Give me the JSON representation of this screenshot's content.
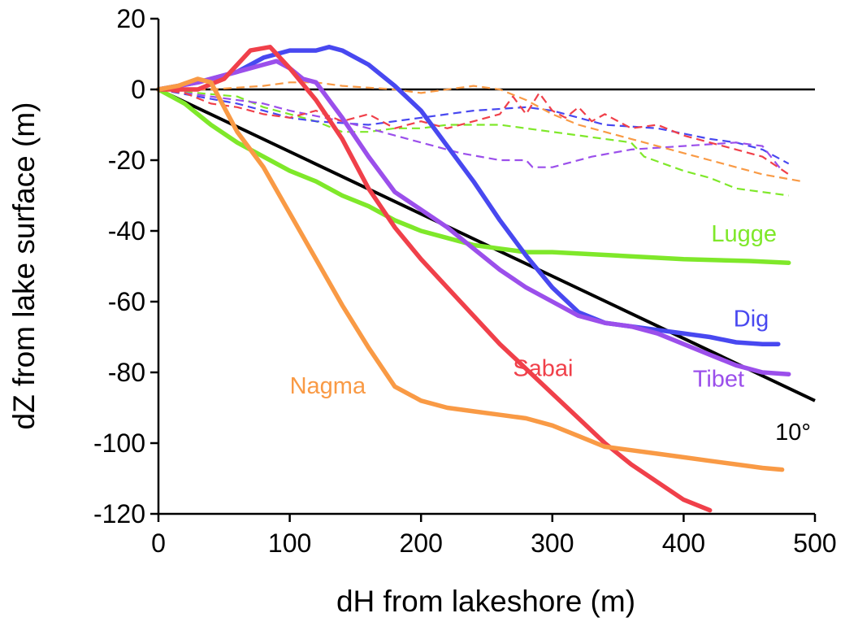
{
  "chart_data": {
    "type": "line",
    "xlabel": "dH from lakeshore (m)",
    "ylabel": "dZ from lake surface (m)",
    "xlim": [
      0,
      500
    ],
    "ylim": [
      -120,
      20
    ],
    "xticks": [
      0,
      100,
      200,
      300,
      400,
      500
    ],
    "yticks": [
      20,
      0,
      -20,
      -40,
      -60,
      -80,
      -100,
      -120
    ],
    "grid": false,
    "legend": "none",
    "reference_lines": [
      {
        "kind": "horizontal",
        "y": 0,
        "color": "#000000"
      },
      {
        "kind": "slope",
        "label": "10°",
        "from": [
          0,
          0
        ],
        "to": [
          500,
          -88
        ],
        "color": "#000000"
      }
    ],
    "series": [
      {
        "name": "Lugge",
        "style": "solid",
        "color": "#7FE82A",
        "label_at": [
          421,
          -43
        ],
        "points": [
          [
            0,
            0
          ],
          [
            20,
            -4
          ],
          [
            40,
            -10
          ],
          [
            60,
            -15
          ],
          [
            80,
            -19
          ],
          [
            100,
            -23
          ],
          [
            120,
            -26
          ],
          [
            140,
            -30
          ],
          [
            160,
            -33
          ],
          [
            180,
            -37
          ],
          [
            200,
            -40
          ],
          [
            220,
            -42
          ],
          [
            240,
            -44
          ],
          [
            260,
            -45
          ],
          [
            280,
            -46
          ],
          [
            300,
            -46
          ],
          [
            350,
            -47
          ],
          [
            400,
            -48
          ],
          [
            450,
            -48.5
          ],
          [
            480,
            -49
          ]
        ]
      },
      {
        "name": "Dig",
        "style": "solid",
        "color": "#4848F0",
        "label_at": [
          438,
          -67
        ],
        "points": [
          [
            0,
            0
          ],
          [
            30,
            2
          ],
          [
            60,
            5
          ],
          [
            80,
            9
          ],
          [
            100,
            11
          ],
          [
            120,
            11
          ],
          [
            130,
            12
          ],
          [
            140,
            11
          ],
          [
            160,
            7
          ],
          [
            180,
            1
          ],
          [
            200,
            -6
          ],
          [
            220,
            -16
          ],
          [
            240,
            -26
          ],
          [
            260,
            -37
          ],
          [
            280,
            -47
          ],
          [
            300,
            -56
          ],
          [
            320,
            -63
          ],
          [
            340,
            -66
          ],
          [
            360,
            -67
          ],
          [
            380,
            -68
          ],
          [
            400,
            -69
          ],
          [
            420,
            -70
          ],
          [
            440,
            -71.5
          ],
          [
            460,
            -72
          ],
          [
            472,
            -72
          ]
        ]
      },
      {
        "name": "Tibet",
        "style": "solid",
        "color": "#9B4FEB",
        "label_at": [
          407,
          -84
        ],
        "points": [
          [
            0,
            0
          ],
          [
            30,
            2
          ],
          [
            60,
            5
          ],
          [
            80,
            7
          ],
          [
            90,
            8
          ],
          [
            100,
            6
          ],
          [
            110,
            3
          ],
          [
            120,
            2
          ],
          [
            140,
            -8
          ],
          [
            160,
            -19
          ],
          [
            180,
            -29
          ],
          [
            200,
            -34
          ],
          [
            220,
            -39
          ],
          [
            240,
            -45
          ],
          [
            260,
            -51
          ],
          [
            280,
            -56
          ],
          [
            300,
            -60
          ],
          [
            320,
            -64
          ],
          [
            340,
            -66
          ],
          [
            360,
            -67
          ],
          [
            380,
            -69
          ],
          [
            400,
            -72
          ],
          [
            420,
            -75
          ],
          [
            440,
            -78
          ],
          [
            460,
            -80
          ],
          [
            480,
            -80.5
          ]
        ]
      },
      {
        "name": "Sabai",
        "style": "solid",
        "color": "#F0404A",
        "label_at": [
          270,
          -81
        ],
        "points": [
          [
            0,
            0
          ],
          [
            30,
            0
          ],
          [
            50,
            3
          ],
          [
            70,
            11
          ],
          [
            85,
            12
          ],
          [
            100,
            6
          ],
          [
            120,
            -3
          ],
          [
            140,
            -14
          ],
          [
            160,
            -28
          ],
          [
            180,
            -39
          ],
          [
            200,
            -48
          ],
          [
            220,
            -56
          ],
          [
            240,
            -64
          ],
          [
            260,
            -72
          ],
          [
            280,
            -79
          ],
          [
            300,
            -86
          ],
          [
            320,
            -93
          ],
          [
            340,
            -100
          ],
          [
            360,
            -106
          ],
          [
            380,
            -111
          ],
          [
            400,
            -116
          ],
          [
            420,
            -119
          ]
        ]
      },
      {
        "name": "Nagma",
        "style": "solid",
        "color": "#F99A45",
        "label_at": [
          100,
          -86
        ],
        "points": [
          [
            0,
            0
          ],
          [
            15,
            1
          ],
          [
            30,
            3
          ],
          [
            40,
            2
          ],
          [
            50,
            -5
          ],
          [
            60,
            -12
          ],
          [
            80,
            -22
          ],
          [
            100,
            -35
          ],
          [
            120,
            -48
          ],
          [
            140,
            -61
          ],
          [
            160,
            -73
          ],
          [
            180,
            -84
          ],
          [
            200,
            -88
          ],
          [
            220,
            -90
          ],
          [
            240,
            -91
          ],
          [
            260,
            -92
          ],
          [
            280,
            -93
          ],
          [
            300,
            -95
          ],
          [
            320,
            -98
          ],
          [
            340,
            -101
          ],
          [
            360,
            -102
          ],
          [
            380,
            -103
          ],
          [
            400,
            -104
          ],
          [
            420,
            -105
          ],
          [
            440,
            -106
          ],
          [
            460,
            -107
          ],
          [
            475,
            -107.5
          ]
        ]
      },
      {
        "name": "",
        "style": "dashed",
        "color": "#7FE82A",
        "points": [
          [
            0,
            0
          ],
          [
            30,
            -1
          ],
          [
            60,
            -2
          ],
          [
            80,
            -5
          ],
          [
            100,
            -7
          ],
          [
            120,
            -9
          ],
          [
            140,
            -12
          ],
          [
            160,
            -12
          ],
          [
            180,
            -11
          ],
          [
            200,
            -11
          ],
          [
            220,
            -10
          ],
          [
            260,
            -10
          ],
          [
            300,
            -12
          ],
          [
            340,
            -14
          ],
          [
            360,
            -15
          ],
          [
            370,
            -19
          ],
          [
            400,
            -23
          ],
          [
            420,
            -25
          ],
          [
            440,
            -28
          ],
          [
            480,
            -30
          ]
        ]
      },
      {
        "name": "",
        "style": "dashed",
        "color": "#4848F0",
        "points": [
          [
            0,
            0
          ],
          [
            30,
            -2
          ],
          [
            60,
            -4
          ],
          [
            80,
            -6
          ],
          [
            100,
            -8
          ],
          [
            120,
            -9
          ],
          [
            160,
            -10
          ],
          [
            200,
            -8
          ],
          [
            240,
            -6
          ],
          [
            280,
            -5
          ],
          [
            300,
            -6
          ],
          [
            340,
            -10
          ],
          [
            380,
            -11
          ],
          [
            420,
            -14
          ],
          [
            440,
            -15
          ],
          [
            460,
            -17
          ],
          [
            480,
            -21
          ]
        ]
      },
      {
        "name": "",
        "style": "dashed",
        "color": "#9B4FEB",
        "points": [
          [
            0,
            0
          ],
          [
            40,
            -2
          ],
          [
            80,
            -4
          ],
          [
            100,
            -6
          ],
          [
            140,
            -9
          ],
          [
            160,
            -11
          ],
          [
            180,
            -13
          ],
          [
            200,
            -15
          ],
          [
            230,
            -18
          ],
          [
            260,
            -20
          ],
          [
            280,
            -20
          ],
          [
            285,
            -22
          ],
          [
            300,
            -22
          ],
          [
            330,
            -19
          ],
          [
            360,
            -17
          ],
          [
            400,
            -16
          ],
          [
            440,
            -15
          ],
          [
            460,
            -16
          ],
          [
            475,
            -23
          ]
        ]
      },
      {
        "name": "",
        "style": "dashed",
        "color": "#F0404A",
        "points": [
          [
            0,
            0
          ],
          [
            20,
            -1
          ],
          [
            40,
            -4
          ],
          [
            60,
            -5
          ],
          [
            80,
            -7
          ],
          [
            100,
            -8
          ],
          [
            120,
            -6
          ],
          [
            140,
            -9
          ],
          [
            160,
            -7
          ],
          [
            180,
            -11
          ],
          [
            200,
            -9
          ],
          [
            220,
            -11
          ],
          [
            240,
            -9
          ],
          [
            260,
            -7
          ],
          [
            270,
            -2
          ],
          [
            280,
            -7
          ],
          [
            290,
            -1
          ],
          [
            300,
            -6
          ],
          [
            310,
            -8
          ],
          [
            320,
            -5
          ],
          [
            330,
            -9
          ],
          [
            340,
            -7
          ],
          [
            360,
            -11
          ],
          [
            380,
            -10
          ],
          [
            400,
            -13
          ],
          [
            420,
            -15
          ],
          [
            440,
            -17
          ],
          [
            460,
            -19
          ],
          [
            480,
            -24
          ]
        ]
      },
      {
        "name": "",
        "style": "dashed",
        "color": "#F99A45",
        "points": [
          [
            0,
            0
          ],
          [
            40,
            0
          ],
          [
            80,
            1
          ],
          [
            100,
            2
          ],
          [
            120,
            2
          ],
          [
            140,
            1
          ],
          [
            180,
            0
          ],
          [
            200,
            -1
          ],
          [
            240,
            1
          ],
          [
            260,
            0
          ],
          [
            280,
            -3
          ],
          [
            300,
            -7
          ],
          [
            320,
            -10
          ],
          [
            340,
            -12
          ],
          [
            360,
            -14
          ],
          [
            380,
            -16
          ],
          [
            400,
            -18
          ],
          [
            420,
            -20
          ],
          [
            440,
            -22
          ],
          [
            460,
            -24
          ],
          [
            490,
            -26
          ]
        ]
      }
    ]
  }
}
